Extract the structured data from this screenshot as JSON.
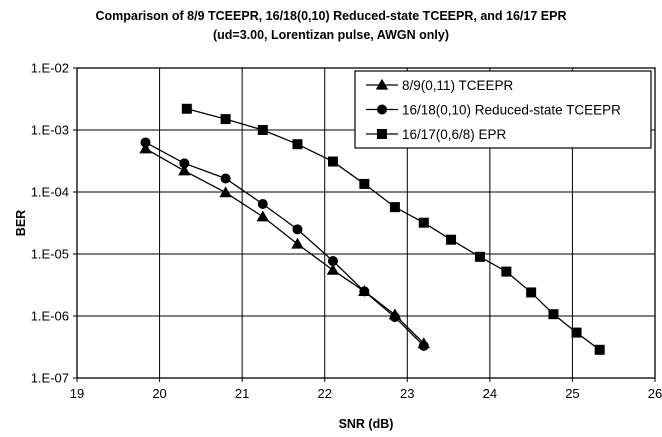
{
  "chart_data": {
    "type": "line",
    "title": "Comparison of 8/9 TCEEPR, 16/18(0,10) Reduced-state TCEEPR, and 16/17 EPR",
    "subtitle": "(ud=3.00, Lorentizan pulse, AWGN only)",
    "xlabel": "SNR (dB)",
    "ylabel": "BER",
    "xlim": [
      19,
      26
    ],
    "ylim": [
      1e-07,
      0.01
    ],
    "y_scale": "log",
    "x_ticks": [
      "19",
      "20",
      "21",
      "22",
      "23",
      "24",
      "25",
      "26"
    ],
    "y_ticks": [
      "1.E-07",
      "1.E-06",
      "1.E-05",
      "1.E-04",
      "1.E-03",
      "1.E-02"
    ],
    "grid": true,
    "legend_position": "top-right",
    "series": [
      {
        "name": "8/9(0,11) TCEEPR",
        "marker": "triangle",
        "x": [
          19.83,
          20.3,
          20.8,
          21.25,
          21.67,
          22.1,
          22.48,
          22.85,
          23.2
        ],
        "y": [
          0.0005,
          0.00022,
          9.8e-05,
          4e-05,
          1.45e-05,
          5.5e-06,
          2.5e-06,
          1.05e-06,
          3.6e-07
        ]
      },
      {
        "name": "16/18(0,10) Reduced-state TCEEPR",
        "marker": "circle",
        "x": [
          19.83,
          20.3,
          20.8,
          21.25,
          21.67,
          22.1,
          22.48,
          22.85,
          23.2
        ],
        "y": [
          0.00063,
          0.00029,
          0.000165,
          6.4e-05,
          2.5e-05,
          7.7e-06,
          2.5e-06,
          9.6e-07,
          3.3e-07
        ]
      },
      {
        "name": "16/17(0,6/8) EPR",
        "marker": "square",
        "x": [
          20.33,
          20.8,
          21.25,
          21.67,
          22.1,
          22.48,
          22.85,
          23.2,
          23.53,
          23.88,
          24.2,
          24.5,
          24.77,
          25.05,
          25.33
        ],
        "y": [
          0.0022,
          0.0015,
          0.001,
          0.00059,
          0.00031,
          0.000135,
          5.7e-05,
          3.2e-05,
          1.7e-05,
          9e-06,
          5.2e-06,
          2.4e-06,
          1.07e-06,
          5.4e-07,
          2.85e-07
        ]
      }
    ]
  }
}
